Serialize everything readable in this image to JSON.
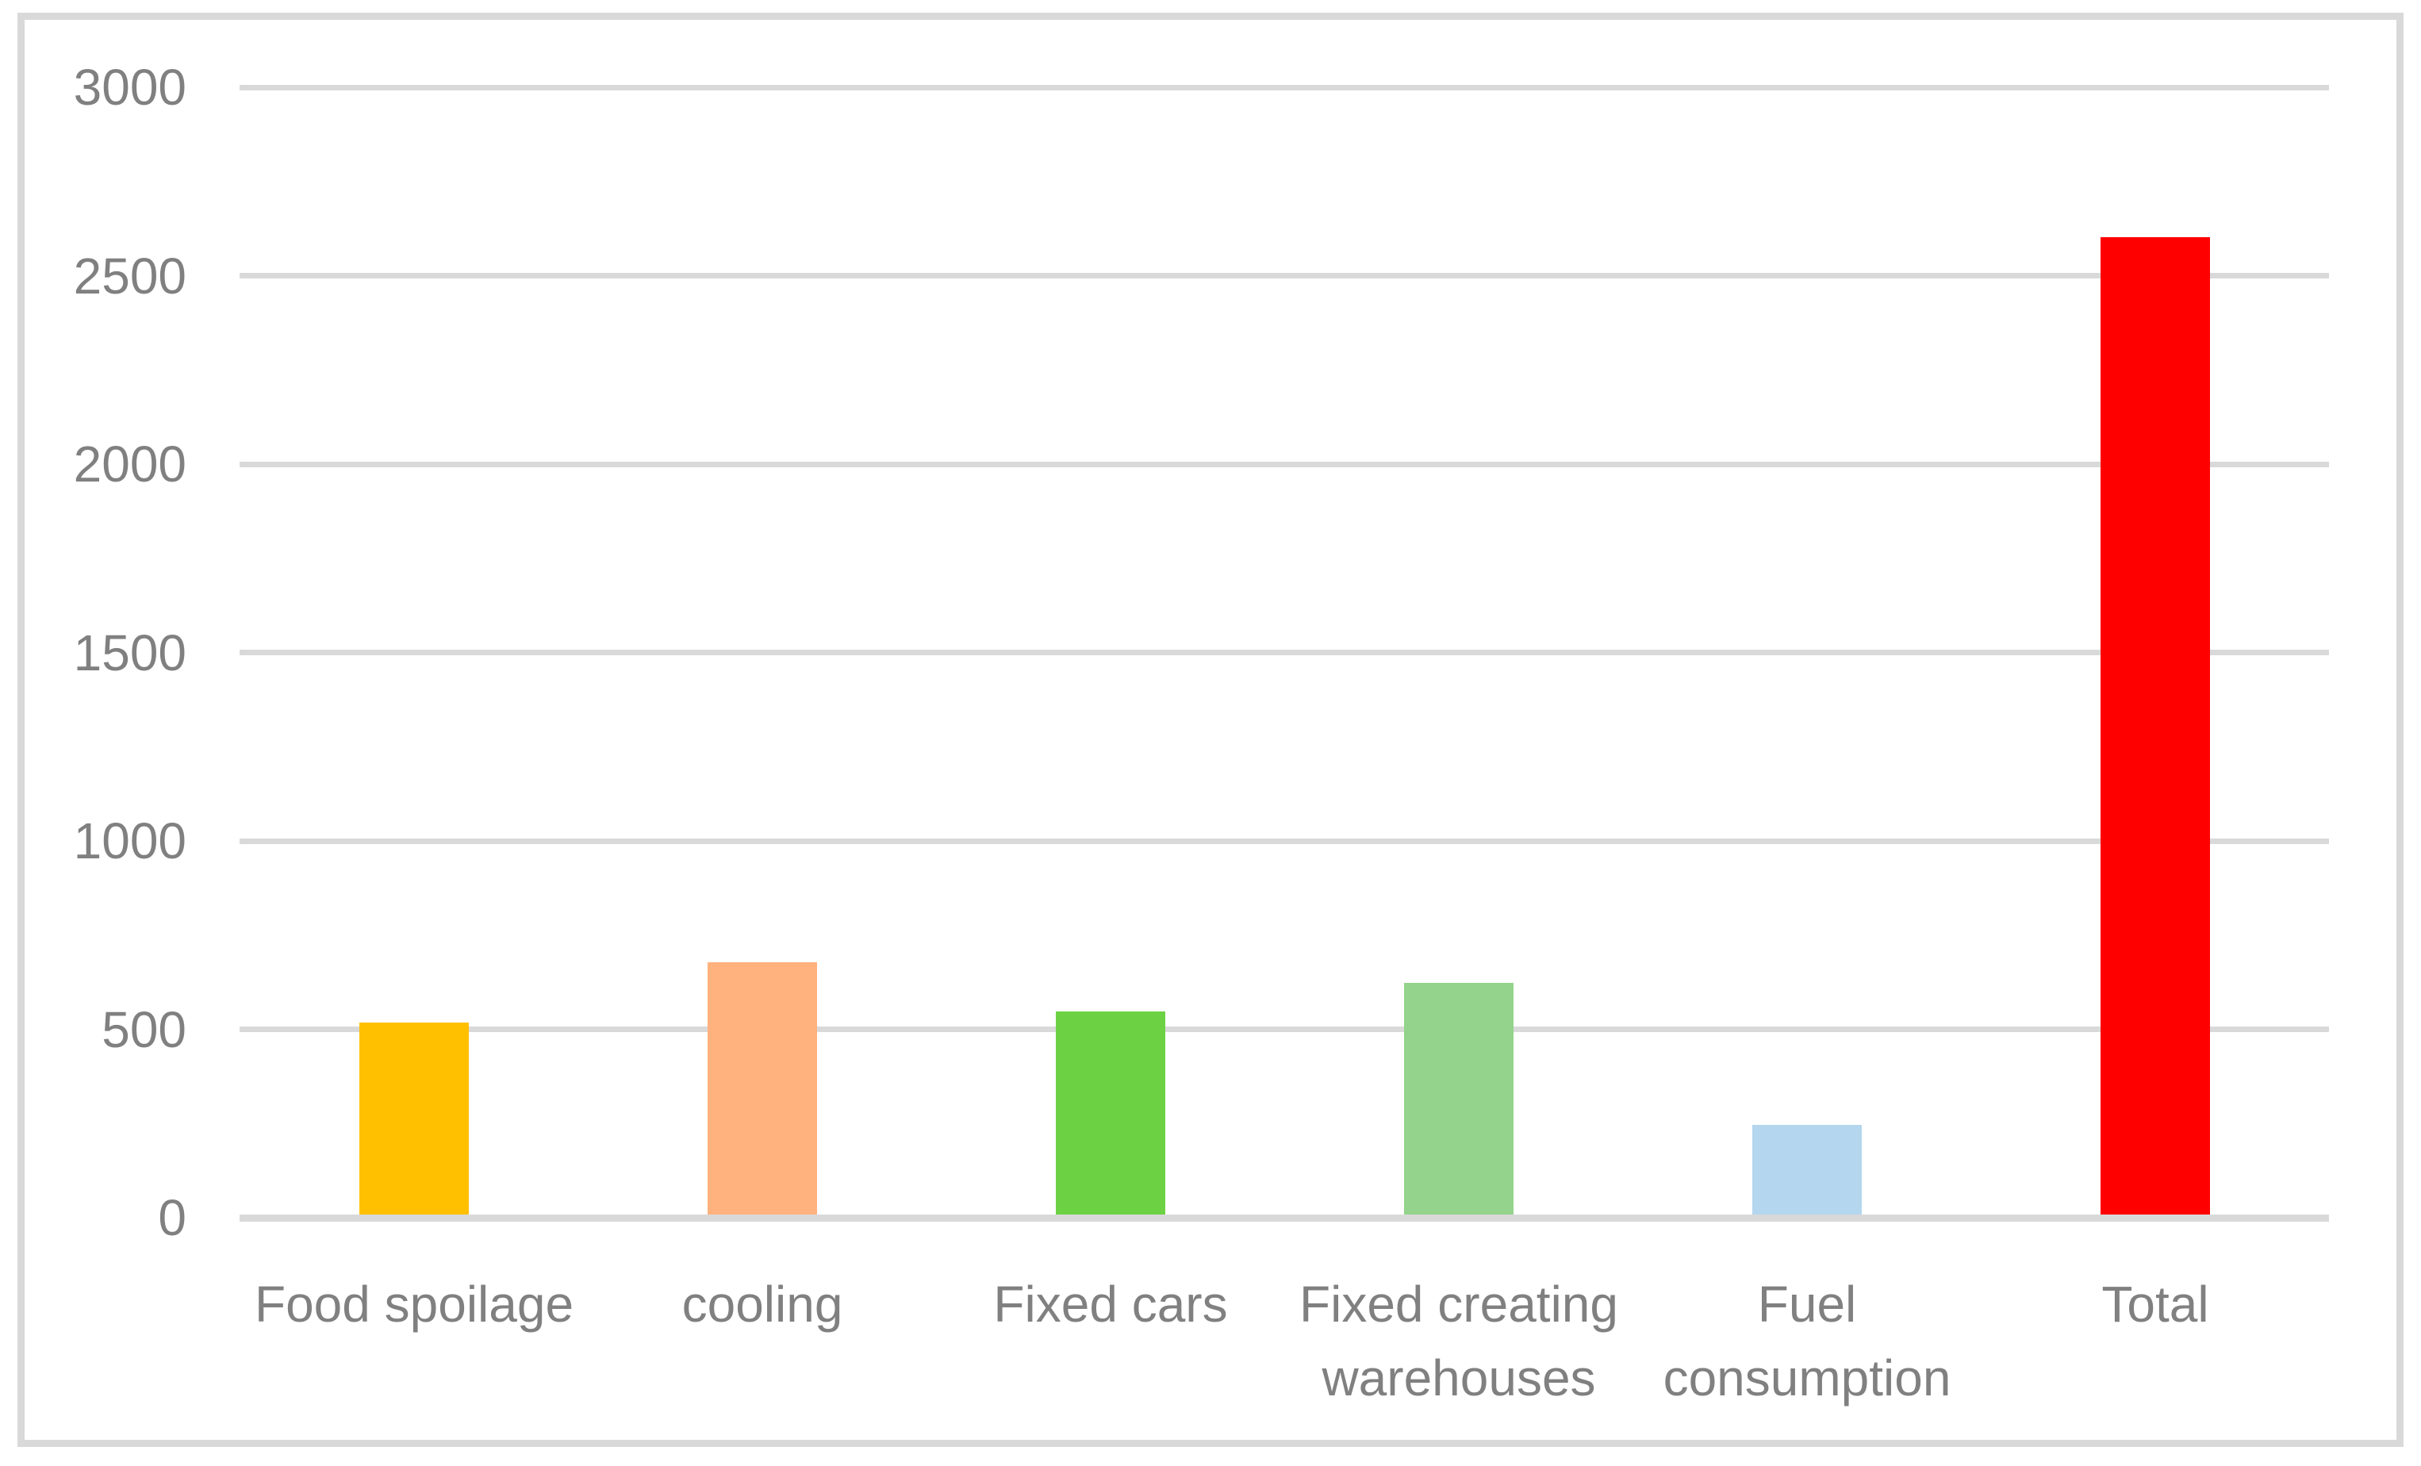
{
  "chart_data": {
    "type": "bar",
    "categories": [
      "Food spoilage",
      "cooling",
      "Fixed cars",
      "Fixed creating warehouses",
      "Fuel consumption",
      "Total"
    ],
    "values": [
      515,
      675,
      545,
      620,
      245,
      2600
    ],
    "bar_colors": [
      "#FFC000",
      "#FFB17E",
      "#6CD244",
      "#93D38B",
      "#B4D6EE",
      "#FF0000"
    ],
    "yticks": [
      0,
      500,
      1000,
      1500,
      2000,
      2500,
      3000
    ],
    "ylim": [
      0,
      3000
    ],
    "xlabel": "",
    "ylabel": "",
    "grid": true,
    "legend": "none",
    "colors": {
      "gridline": "#D9D9D9",
      "axis_line": "#D9D9D9",
      "frame_border": "#D9D9D9",
      "tick_label": "#808080",
      "category_label": "#808080",
      "background": "#FFFFFF"
    }
  }
}
